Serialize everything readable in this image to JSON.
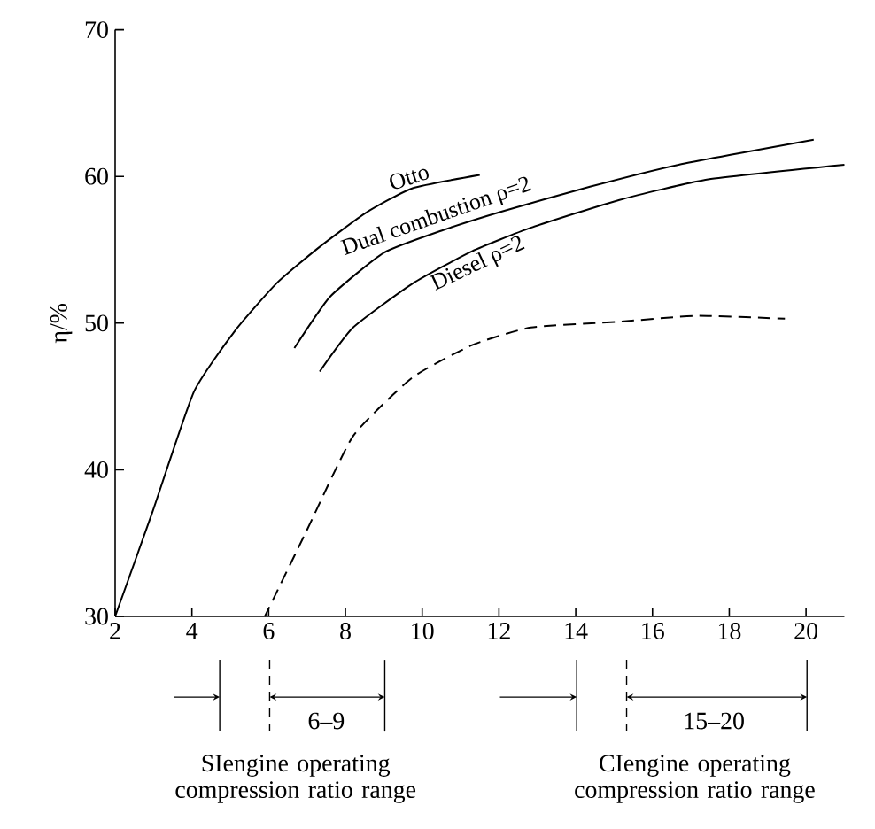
{
  "chart_data": {
    "type": "line",
    "ylabel": "η/%",
    "xlim": [
      2,
      21
    ],
    "ylim": [
      30,
      70
    ],
    "xticks": [
      2,
      4,
      6,
      8,
      10,
      12,
      14,
      16,
      18,
      20
    ],
    "yticks": [
      30,
      40,
      50,
      60,
      70
    ],
    "marker": "none",
    "annotations": [
      "6–9",
      "15–20",
      "SIengine operating compression ratio range",
      "CIengine operating compression ratio range"
    ],
    "series": [
      {
        "name": "Otto",
        "color": "#000000",
        "x": [
          2,
          2.97,
          4.05,
          5.13,
          6.2,
          7.28,
          8.52,
          9.75,
          11.5
        ],
        "values": [
          30,
          37.1,
          45.3,
          49.5,
          52.7,
          55.1,
          57.5,
          59.2,
          60.1
        ]
      },
      {
        "name": "Dual combustion ρ=2",
        "color": "#000000",
        "x": [
          6.67,
          7.6,
          9.0,
          10.5,
          12.06,
          14.37,
          16.68,
          20.2
        ],
        "values": [
          48.3,
          51.8,
          54.8,
          56.3,
          57.6,
          59.3,
          60.8,
          62.5
        ]
      },
      {
        "name": "Diesel ρ=2",
        "color": "#000000",
        "x": [
          7.33,
          8.2,
          9.75,
          11.3,
          12.83,
          15.14,
          17.45,
          21
        ],
        "values": [
          46.7,
          49.7,
          52.7,
          54.9,
          56.5,
          58.4,
          59.8,
          60.8
        ]
      },
      {
        "color": "#000000",
        "line_style": "dashed",
        "x": [
          5.9,
          7.0,
          8.2,
          9.75,
          11.3,
          12.83,
          15.14,
          17.15,
          19.45
        ],
        "values": [
          30,
          35.9,
          42.3,
          46.3,
          48.5,
          49.7,
          50.1,
          50.5,
          50.3
        ]
      }
    ]
  }
}
